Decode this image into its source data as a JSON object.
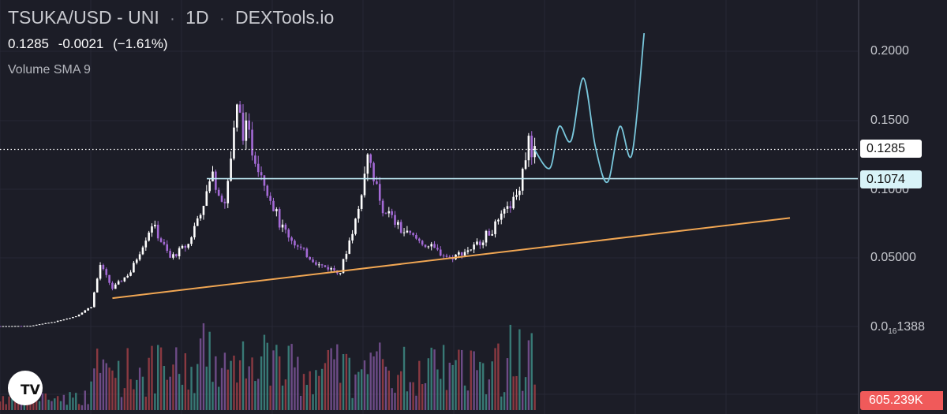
{
  "header": {
    "pair": "TSUKA/USD",
    "exchange": "UNI",
    "interval": "1D",
    "source": "DEXTools.io",
    "separator": "·",
    "dash": "-"
  },
  "quote": {
    "last": "0.1285",
    "change": "-0.0021",
    "change_pct": "(−1.61%)"
  },
  "indicator": {
    "label": "Volume SMA 9"
  },
  "axis": {
    "y_ticks": [
      {
        "label": "0.2000",
        "value": 0.2
      },
      {
        "label": "0.1500",
        "value": 0.15
      },
      {
        "label": "0.1000",
        "value": 0.1
      },
      {
        "label": "0.05000",
        "value": 0.05
      }
    ],
    "low_tick": {
      "prefix": "0.0",
      "sub": "16",
      "suffix": "1388"
    }
  },
  "tags": {
    "current_price": "0.1285",
    "level_price": "0.1074",
    "volume": "605.239K"
  },
  "logo_text": "TV",
  "colors": {
    "background": "#1c1d27",
    "candle_up": "#ffffff",
    "candle_down": "#a46ad6",
    "trendline": "#f0a653",
    "resistance": "#bfeaf5",
    "projection": "#79c7dc",
    "volume": [
      "#3d8a84",
      "#9e3e47",
      "#7b5398"
    ]
  },
  "chart_data": {
    "type": "candlestick",
    "title": "TSUKA/USD - UNI · 1D · DEXTools.io",
    "ylim": [
      0,
      0.215
    ],
    "y_ticks": [
      0.05,
      0.1,
      0.15,
      0.2
    ],
    "current_price": 0.1285,
    "change": -0.0021,
    "change_pct": -1.61,
    "horizontal_level": 0.1074,
    "grid": true,
    "price_path": [
      {
        "t": 0,
        "v": 0.0008
      },
      {
        "t": 10,
        "v": 0.001
      },
      {
        "t": 18,
        "v": 0.004
      },
      {
        "t": 25,
        "v": 0.008
      },
      {
        "t": 30,
        "v": 0.015
      },
      {
        "t": 33,
        "v": 0.045
      },
      {
        "t": 37,
        "v": 0.028
      },
      {
        "t": 43,
        "v": 0.04
      },
      {
        "t": 50,
        "v": 0.075
      },
      {
        "t": 56,
        "v": 0.05
      },
      {
        "t": 62,
        "v": 0.06
      },
      {
        "t": 70,
        "v": 0.11
      },
      {
        "t": 74,
        "v": 0.09
      },
      {
        "t": 78,
        "v": 0.155
      },
      {
        "t": 85,
        "v": 0.12
      },
      {
        "t": 92,
        "v": 0.075
      },
      {
        "t": 98,
        "v": 0.058
      },
      {
        "t": 105,
        "v": 0.045
      },
      {
        "t": 112,
        "v": 0.04
      },
      {
        "t": 118,
        "v": 0.085
      },
      {
        "t": 121,
        "v": 0.13
      },
      {
        "t": 125,
        "v": 0.09
      },
      {
        "t": 132,
        "v": 0.07
      },
      {
        "t": 140,
        "v": 0.06
      },
      {
        "t": 148,
        "v": 0.05
      },
      {
        "t": 156,
        "v": 0.058
      },
      {
        "t": 164,
        "v": 0.075
      },
      {
        "t": 170,
        "v": 0.095
      },
      {
        "t": 174,
        "v": 0.135
      },
      {
        "t": 176,
        "v": 0.125
      }
    ],
    "trendline": {
      "from": [
        37,
        0.021
      ],
      "to": [
        260,
        0.079
      ]
    },
    "projection": [
      {
        "t": 176,
        "v": 0.128
      },
      {
        "t": 181,
        "v": 0.115
      },
      {
        "t": 184,
        "v": 0.145
      },
      {
        "t": 188,
        "v": 0.135
      },
      {
        "t": 192,
        "v": 0.18
      },
      {
        "t": 196,
        "v": 0.13
      },
      {
        "t": 200,
        "v": 0.105
      },
      {
        "t": 204,
        "v": 0.145
      },
      {
        "t": 208,
        "v": 0.125
      },
      {
        "t": 212,
        "v": 0.2125
      }
    ]
  }
}
